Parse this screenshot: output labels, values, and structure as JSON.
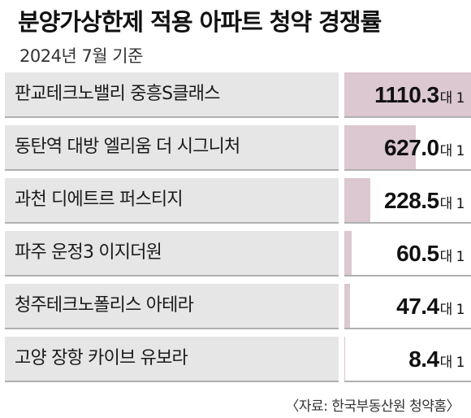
{
  "chart_data": {
    "type": "table",
    "title": "분양가상한제 적용 아파트 청약 경쟁률",
    "subtitle": "2024년 7월 기준",
    "unit_text": "대 1",
    "source": "〈자료: 한국부동산원 청약홈〉",
    "fill_color": "#dcc8d1",
    "rows": [
      {
        "name": "판교테크노밸리 중흥S클래스",
        "value": 1110.3,
        "value_text": "1110.3"
      },
      {
        "name": "동탄역 대방 엘리움 더 시그니처",
        "value": 627.0,
        "value_text": "627.0"
      },
      {
        "name": "과천 디에트르 퍼스티지",
        "value": 228.5,
        "value_text": "228.5"
      },
      {
        "name": "파주 운정3 이지더원",
        "value": 60.5,
        "value_text": "60.5"
      },
      {
        "name": "청주테크노폴리스 아테라",
        "value": 47.4,
        "value_text": "47.4"
      },
      {
        "name": "고양 장항 카이브 유보라",
        "value": 8.4,
        "value_text": "8.4"
      }
    ]
  }
}
